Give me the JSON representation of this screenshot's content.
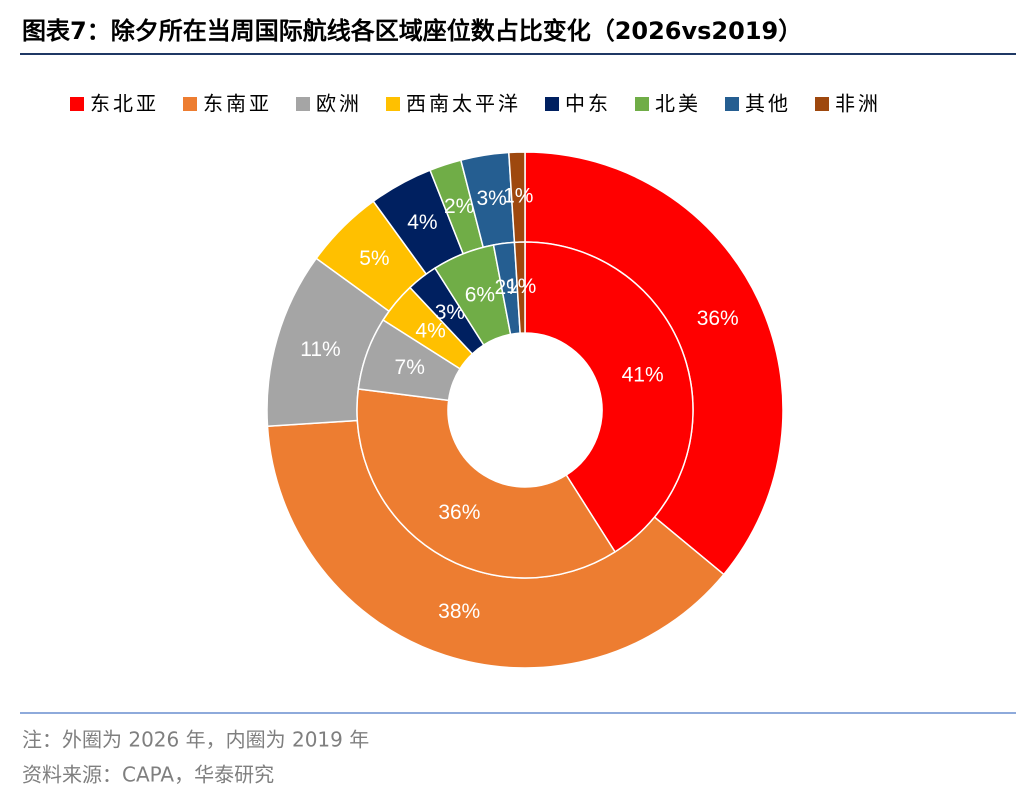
{
  "chart_data": {
    "type": "donut",
    "title": "图表7：除夕所在当周国际航线各区域座位数占比变化（2026vs2019）",
    "categories": [
      "东北亚",
      "东南亚",
      "欧洲",
      "西南太平洋",
      "中东",
      "北美",
      "其他",
      "非洲"
    ],
    "colors": [
      "#ff0000",
      "#ed7d31",
      "#a5a5a5",
      "#ffc000",
      "#002060",
      "#70ad47",
      "#255e91",
      "#9e480e"
    ],
    "series": [
      {
        "values": [
          36,
          38,
          11,
          5,
          4,
          2,
          3,
          1
        ],
        "value_labels": [
          "36%",
          "38%",
          "11%",
          "5%",
          "4%",
          "2%",
          "3%",
          "1%"
        ]
      },
      {
        "values": [
          41,
          36,
          7,
          4,
          3,
          6,
          2,
          1
        ],
        "value_labels": [
          "41%",
          "36%",
          "7%",
          "4%",
          "3%",
          "6%",
          "2%",
          "1%"
        ]
      }
    ],
    "notes": [
      "注：外圈为 2026 年，内圈为 2019 年",
      "资料来源：CAPA，华泰研究"
    ]
  }
}
